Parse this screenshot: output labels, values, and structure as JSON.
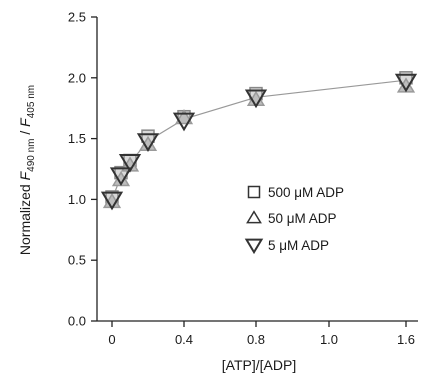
{
  "chart_data": {
    "type": "scatter",
    "xlabel": "[ATP]/[ADP]",
    "ylabel": {
      "prefix": "Normalized ",
      "var1": "F",
      "sub1": "490 nm",
      "separator": " / ",
      "var2": "F",
      "sub2": "405 nm"
    },
    "x_tick_labels": [
      "0",
      "0.4",
      "0.8",
      "1.0",
      "1.6"
    ],
    "y_tick_labels": [
      "0.0",
      "0.5",
      "1.0",
      "1.5",
      "2.0",
      "2.5"
    ],
    "y_ticks": [
      0.0,
      0.5,
      1.0,
      1.5,
      2.0,
      2.5
    ],
    "ylim": [
      0,
      2.5
    ],
    "x_axis_note": "axis is non-linear; segment 1.0 to 1.6 compressed into one tick interval",
    "grid": false,
    "legend_position": "right",
    "legend": [
      {
        "label": "500 μM ADP",
        "marker": "square"
      },
      {
        "label": "50 μM ADP",
        "marker": "triangle-up"
      },
      {
        "label": "5 μM ADP",
        "marker": "triangle-down"
      }
    ],
    "series": [
      {
        "name": "500 μM ADP",
        "marker": "square",
        "color": "#888888",
        "x": [
          0,
          0.05,
          0.1,
          0.2,
          0.4,
          0.8,
          1.6
        ],
        "y": [
          1.02,
          1.22,
          1.32,
          1.52,
          1.68,
          1.87,
          2.0
        ]
      },
      {
        "name": "50 μM ADP",
        "marker": "triangle-up",
        "color": "#9a9a9a",
        "x": [
          0,
          0.05,
          0.1,
          0.2,
          0.4,
          0.8,
          1.6
        ],
        "y": [
          0.98,
          1.16,
          1.28,
          1.45,
          1.67,
          1.82,
          1.93
        ]
      },
      {
        "name": "5 μM ADP",
        "marker": "triangle-down",
        "color": "#333333",
        "x": [
          0,
          0.05,
          0.1,
          0.2,
          0.4,
          0.8,
          1.6
        ],
        "y": [
          1.0,
          1.2,
          1.31,
          1.48,
          1.65,
          1.84,
          1.97
        ]
      }
    ],
    "fit_line": {
      "color": "#999999",
      "x": [
        0,
        0.05,
        0.1,
        0.2,
        0.4,
        0.8,
        1.6
      ],
      "y": [
        1.0,
        1.19,
        1.3,
        1.48,
        1.66,
        1.84,
        1.98
      ]
    }
  }
}
